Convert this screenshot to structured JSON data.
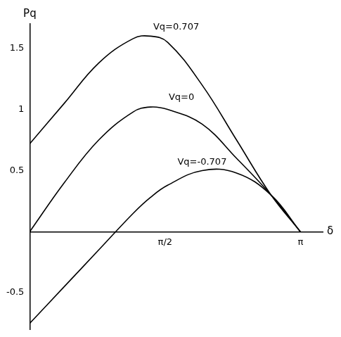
{
  "chart_data": {
    "type": "line",
    "x_label": "δ",
    "y_label": "Pq",
    "x": [
      0,
      0.4,
      0.8,
      1.2,
      1.4,
      1.6,
      2.0,
      2.4,
      2.8,
      3.14
    ],
    "series": [
      {
        "name": "Vq=0.707",
        "color": "#000000",
        "values": [
          0.72,
          1.05,
          1.38,
          1.58,
          1.6,
          1.55,
          1.2,
          0.75,
          0.3,
          0
        ]
      },
      {
        "name": "Vq=0",
        "color": "#000000",
        "values": [
          0,
          0.4,
          0.75,
          0.98,
          1.02,
          1.0,
          0.88,
          0.6,
          0.3,
          0
        ]
      },
      {
        "name": "Vq=-0.707",
        "color": "#000000",
        "values": [
          -0.75,
          -0.45,
          -0.15,
          0.15,
          0.28,
          0.38,
          0.5,
          0.48,
          0.3,
          0
        ]
      }
    ],
    "xlim": [
      0,
      3.4
    ],
    "xticks": [
      {
        "value": 1.5708,
        "label": "π/2"
      },
      {
        "value": 3.1416,
        "label": "π"
      }
    ],
    "ylim": [
      -0.8,
      1.7
    ],
    "yticks": [
      -0.5,
      0.5,
      1,
      1.5
    ],
    "grid": false
  }
}
